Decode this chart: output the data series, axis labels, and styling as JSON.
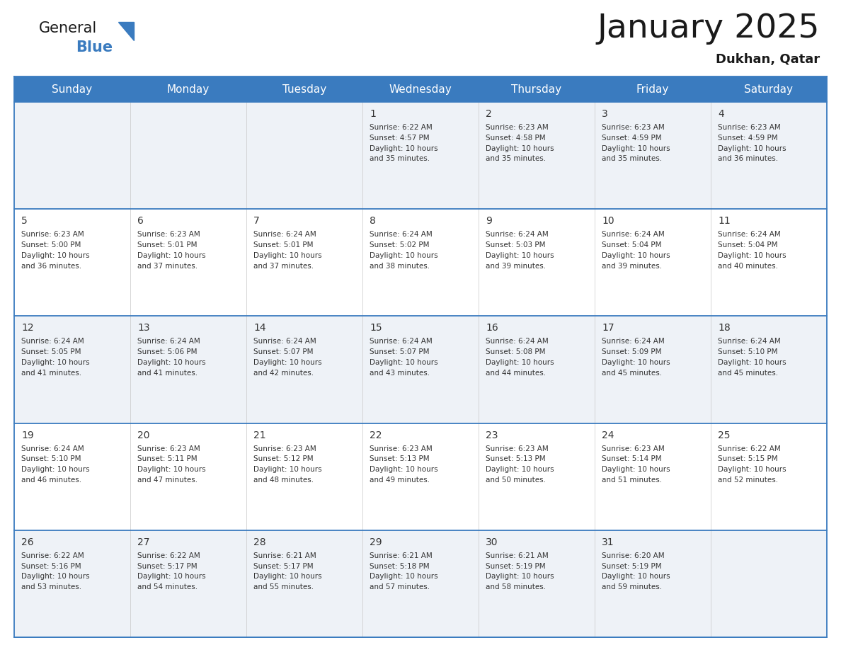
{
  "title": "January 2025",
  "subtitle": "Dukhan, Qatar",
  "header_color": "#3a7bbf",
  "header_text_color": "#ffffff",
  "weekdays": [
    "Sunday",
    "Monday",
    "Tuesday",
    "Wednesday",
    "Thursday",
    "Friday",
    "Saturday"
  ],
  "cell_bg_row0": "#eef2f7",
  "cell_bg_row1": "#ffffff",
  "row_line_color": "#3a7bbf",
  "text_color": "#333333",
  "calendar_data": [
    [
      null,
      null,
      null,
      {
        "day": 1,
        "sunrise": "6:22 AM",
        "sunset": "4:57 PM",
        "daylight_min": 35
      },
      {
        "day": 2,
        "sunrise": "6:23 AM",
        "sunset": "4:58 PM",
        "daylight_min": 35
      },
      {
        "day": 3,
        "sunrise": "6:23 AM",
        "sunset": "4:59 PM",
        "daylight_min": 35
      },
      {
        "day": 4,
        "sunrise": "6:23 AM",
        "sunset": "4:59 PM",
        "daylight_min": 36
      }
    ],
    [
      {
        "day": 5,
        "sunrise": "6:23 AM",
        "sunset": "5:00 PM",
        "daylight_min": 36
      },
      {
        "day": 6,
        "sunrise": "6:23 AM",
        "sunset": "5:01 PM",
        "daylight_min": 37
      },
      {
        "day": 7,
        "sunrise": "6:24 AM",
        "sunset": "5:01 PM",
        "daylight_min": 37
      },
      {
        "day": 8,
        "sunrise": "6:24 AM",
        "sunset": "5:02 PM",
        "daylight_min": 38
      },
      {
        "day": 9,
        "sunrise": "6:24 AM",
        "sunset": "5:03 PM",
        "daylight_min": 39
      },
      {
        "day": 10,
        "sunrise": "6:24 AM",
        "sunset": "5:04 PM",
        "daylight_min": 39
      },
      {
        "day": 11,
        "sunrise": "6:24 AM",
        "sunset": "5:04 PM",
        "daylight_min": 40
      }
    ],
    [
      {
        "day": 12,
        "sunrise": "6:24 AM",
        "sunset": "5:05 PM",
        "daylight_min": 41
      },
      {
        "day": 13,
        "sunrise": "6:24 AM",
        "sunset": "5:06 PM",
        "daylight_min": 41
      },
      {
        "day": 14,
        "sunrise": "6:24 AM",
        "sunset": "5:07 PM",
        "daylight_min": 42
      },
      {
        "day": 15,
        "sunrise": "6:24 AM",
        "sunset": "5:07 PM",
        "daylight_min": 43
      },
      {
        "day": 16,
        "sunrise": "6:24 AM",
        "sunset": "5:08 PM",
        "daylight_min": 44
      },
      {
        "day": 17,
        "sunrise": "6:24 AM",
        "sunset": "5:09 PM",
        "daylight_min": 45
      },
      {
        "day": 18,
        "sunrise": "6:24 AM",
        "sunset": "5:10 PM",
        "daylight_min": 45
      }
    ],
    [
      {
        "day": 19,
        "sunrise": "6:24 AM",
        "sunset": "5:10 PM",
        "daylight_min": 46
      },
      {
        "day": 20,
        "sunrise": "6:23 AM",
        "sunset": "5:11 PM",
        "daylight_min": 47
      },
      {
        "day": 21,
        "sunrise": "6:23 AM",
        "sunset": "5:12 PM",
        "daylight_min": 48
      },
      {
        "day": 22,
        "sunrise": "6:23 AM",
        "sunset": "5:13 PM",
        "daylight_min": 49
      },
      {
        "day": 23,
        "sunrise": "6:23 AM",
        "sunset": "5:13 PM",
        "daylight_min": 50
      },
      {
        "day": 24,
        "sunrise": "6:23 AM",
        "sunset": "5:14 PM",
        "daylight_min": 51
      },
      {
        "day": 25,
        "sunrise": "6:22 AM",
        "sunset": "5:15 PM",
        "daylight_min": 52
      }
    ],
    [
      {
        "day": 26,
        "sunrise": "6:22 AM",
        "sunset": "5:16 PM",
        "daylight_min": 53
      },
      {
        "day": 27,
        "sunrise": "6:22 AM",
        "sunset": "5:17 PM",
        "daylight_min": 54
      },
      {
        "day": 28,
        "sunrise": "6:21 AM",
        "sunset": "5:17 PM",
        "daylight_min": 55
      },
      {
        "day": 29,
        "sunrise": "6:21 AM",
        "sunset": "5:18 PM",
        "daylight_min": 57
      },
      {
        "day": 30,
        "sunrise": "6:21 AM",
        "sunset": "5:19 PM",
        "daylight_min": 58
      },
      {
        "day": 31,
        "sunrise": "6:20 AM",
        "sunset": "5:19 PM",
        "daylight_min": 59
      },
      null
    ]
  ],
  "logo_general_color": "#1a1a1a",
  "logo_blue_color": "#3a7bbf",
  "logo_triangle_color": "#3a7bbf"
}
